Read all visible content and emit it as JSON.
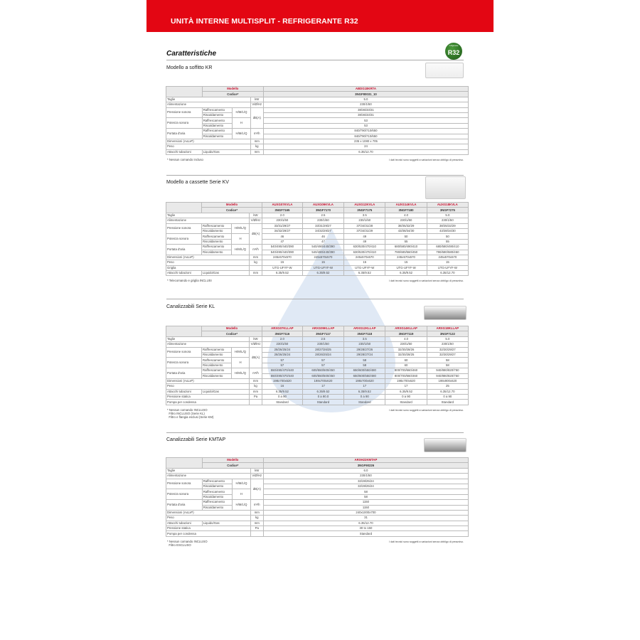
{
  "header": {
    "title": "UNITÀ INTERNE MULTISPLIT - REFRIGERANTE R32"
  },
  "section_heading": "Caratteristiche",
  "badge": {
    "text": "R32",
    "small": "refrigerante",
    "color": "#2e7d32"
  },
  "accent": "#e30613",
  "labels": {
    "modello": "Modello",
    "codice": "Codice*"
  },
  "disclaimer": "I dati tecnici sono soggetti a variazioni senza obbligo di preavviso.",
  "tables": [
    {
      "title": "Modello a soffitto KR",
      "models": [
        "ABDG18KRTA"
      ],
      "codes": [
        "3NGF80031_10"
      ],
      "rows": [
        {
          "label": "Taglie",
          "unit": "kW",
          "values": [
            "5.0"
          ]
        },
        {
          "label": "Alimentazione",
          "unit": "V/Ø/Hz",
          "values": [
            "230/1/50"
          ]
        },
        {
          "label": "Pressione sonora",
          "mode": "H/M/L/Q",
          "unit": "dB(A)",
          "span4": true,
          "sub": [
            "Raffrescamento",
            "Riscaldamento"
          ],
          "values": [
            [
              "38/36/33/31"
            ],
            [
              "38/36/33/31"
            ]
          ]
        },
        {
          "label": "Potenza sonora",
          "mode": "H",
          "sub": [
            "Raffrescamento",
            "Riscaldamento"
          ],
          "values": [
            [
              "53"
            ],
            [
              "53"
            ]
          ]
        },
        {
          "label": "Portata d'aria",
          "mode": "H/M/L/Q",
          "unit": "m³/h",
          "sub": [
            "Raffrescamento",
            "Riscaldamento"
          ],
          "values": [
            [
              "840/790/710/650"
            ],
            [
              "840/790/710/650"
            ]
          ]
        },
        {
          "label": "Dimensioni (AxLxP)",
          "unit": "mm",
          "values": [
            "235 x 1080 x 705"
          ]
        },
        {
          "label": "Peso",
          "unit": "kg",
          "values": [
            "24"
          ]
        },
        {
          "label": "Attacchi tubazioni",
          "sublabel": "Liquido/Gas",
          "unit": "mm",
          "values": [
            "6.35/12.70"
          ]
        }
      ],
      "note": "* Nessun comando incluso"
    },
    {
      "title": "Modello a cassette Serie KV",
      "models": [
        "AUXG07KVLA",
        "AUXG09KVLA",
        "AUXG12KVLA",
        "AUXG14KVLA",
        "AUXG18KVLA"
      ],
      "codes": [
        "3NGF7165",
        "3NGF7170",
        "3NGF7175",
        "3NGF7180",
        "3NGF7275"
      ],
      "rows": [
        {
          "label": "Taglie",
          "unit": "kW",
          "values": [
            "2.0",
            "2.5",
            "3.5",
            "4.0",
            "5.0"
          ]
        },
        {
          "label": "Alimentazione",
          "unit": "V/Ø/Hz",
          "values": [
            "230/1/50",
            "230/1/50",
            "230/1/50",
            "230/1/50",
            "230/1/50"
          ]
        },
        {
          "label": "Pressione sonora",
          "mode": "H/M/L/Q",
          "unit": "dB(A)",
          "span4": true,
          "sub": [
            "Raffrescamento",
            "Riscaldamento"
          ],
          "values": [
            [
              "33/31/29/27",
              "33/31/29/27",
              "37/34/31/28",
              "38/35/32/29",
              "38/35/32/29"
            ],
            [
              "34/32/29/27",
              "34/32/29/27",
              "37/34/31/29",
              "43/38/34/30",
              "43/38/34/30"
            ]
          ]
        },
        {
          "label": "Potenza sonora",
          "mode": "H",
          "sub": [
            "Raffrescamento",
            "Riscaldamento"
          ],
          "values": [
            [
              "46",
              "46",
              "49",
              "50",
              "50"
            ],
            [
              "47",
              "47",
              "49",
              "55",
              "55"
            ]
          ]
        },
        {
          "label": "Portata d'aria",
          "mode": "H/M/L/Q",
          "unit": "m³/h",
          "sub": [
            "Raffrescamento",
            "Riscaldamento"
          ],
          "values": [
            [
              "540/490/440/390",
              "540/490/440/390",
              "630/530/470/410",
              "680/580/490/410",
              "680/580/490/410"
            ],
            [
              "540/490/440/390",
              "540/490/440/390",
              "630/530/470/410",
              "790/680/560/450",
              "790/680/580/450"
            ]
          ]
        },
        {
          "label": "Dimensioni (AxLxP)",
          "unit": "mm",
          "values": [
            "245x570x570",
            "245x570x570",
            "245x570x570",
            "245x570x570",
            "245x570x570"
          ]
        },
        {
          "label": "Peso",
          "unit": "kg",
          "values": [
            "15",
            "15",
            "15",
            "15",
            "15"
          ]
        },
        {
          "label": "Griglia",
          "unit": "",
          "values": [
            "UTG-UFYF-W",
            "UTG-UFYF-W",
            "UTG-UFYF-W",
            "UTG-UFYF-W",
            "UTG-UFYF-W"
          ]
        },
        {
          "label": "Attacchi tubazioni",
          "sublabel": "Liquido/Gas",
          "unit": "mm",
          "values": [
            "6.35/9.52",
            "6.35/9.52",
            "6.35/9.52",
            "6.35/9.52",
            "6.35/12.70"
          ]
        }
      ],
      "note": "* Telecomando e griglia INCLUSI"
    },
    {
      "title": "Canalizzabili Serie KL",
      "models": [
        "ARXG07KLLAP",
        "ARXG09KLLAP",
        "ARXG12KLLAP",
        "ARXG14KLLAP",
        "ARXG18KLLAP"
      ],
      "codes": [
        "3NGF7116",
        "3NGF7117",
        "3NGF7118",
        "3NGF7119",
        "3NGF7122"
      ],
      "rows": [
        {
          "label": "Taglie",
          "unit": "kW",
          "values": [
            "2.0",
            "2.5",
            "3.5",
            "4.0",
            "5.0"
          ]
        },
        {
          "label": "Alimentazione",
          "unit": "V/Ø/Hz",
          "values": [
            "230/1/50",
            "230/1/50",
            "230/1/50",
            "230/1/50",
            "230/1/50"
          ]
        },
        {
          "label": "Pressione sonora",
          "mode": "H/M/L/Q",
          "unit": "dB(A)",
          "span4": true,
          "sub": [
            "Raffrescamento",
            "Riscaldamento"
          ],
          "values": [
            [
              "28/26/25/24",
              "28/27/26/25",
              "29/28/27/26",
              "32/30/28/26",
              "32/30/29/27"
            ],
            [
              "28/26/25/24",
              "28/26/25/24",
              "29/28/27/24",
              "32/30/28/25",
              "32/30/29/27"
            ]
          ]
        },
        {
          "label": "Potenza sonora",
          "mode": "H",
          "sub": [
            "Raffrescamento",
            "Riscaldamento"
          ],
          "values": [
            [
              "57",
              "57",
              "58",
              "60",
              "58"
            ],
            [
              "57",
              "57",
              "58",
              "60",
              "58"
            ]
          ]
        },
        {
          "label": "Portata d'aria",
          "mode": "H/M/L/Q",
          "unit": "m³/h",
          "sub": [
            "Raffrescamento",
            "Riscaldamento"
          ],
          "values": [
            [
              "550/490/470/440",
              "600/550/500/450",
              "650/600/550/480",
              "800/700/660/460",
              "940/880/820/750"
            ],
            [
              "550/490/470/440",
              "600/550/500/450",
              "650/600/550/480",
              "800/700/660/460",
              "940/880/820/750"
            ]
          ]
        },
        {
          "label": "Dimensioni (AxLxP)",
          "unit": "mm",
          "values": [
            "198x700x620",
            "198x700x620",
            "198x700x620",
            "198x700x620",
            "198x900x620"
          ]
        },
        {
          "label": "Peso",
          "unit": "kg",
          "values": [
            "16",
            "17",
            "17",
            "17",
            "25"
          ]
        },
        {
          "label": "Attacchi tubazioni",
          "sublabel": "Liquido/Gas",
          "unit": "mm",
          "values": [
            "6.35/9.52",
            "6.35/9.52",
            "6.35/9.52",
            "6.35/9.52",
            "6.35/12.70"
          ]
        },
        {
          "label": "Pressione statica",
          "unit": "Pa",
          "values": [
            "0 a 90",
            "0 a 90.0",
            "0 a 90",
            "0 a 90",
            "0 a 90"
          ]
        },
        {
          "label": "Pompa per condensa",
          "unit": "",
          "values": [
            "Standard",
            "Standard",
            "Standard",
            "Standard",
            "Standard"
          ]
        }
      ],
      "note": "* Nessun comando INCLUSO\n  Filtro INCLUSO (Serie KL)\n  Filtro e flangia esclusi (Serie KM)"
    },
    {
      "title": "Canalizzabili Serie KMTAP",
      "models": [
        "ARXH22KMTAP"
      ],
      "codes": [
        "3NGF90226"
      ],
      "rows": [
        {
          "label": "Taglie",
          "unit": "kW",
          "values": [
            "6.0"
          ]
        },
        {
          "label": "Alimentazione",
          "unit": "V/Ø/Hz",
          "values": [
            "230/1/50"
          ]
        },
        {
          "label": "Pressione sonora",
          "mode": "H/M/L/Q",
          "unit": "dB(A)",
          "span4": true,
          "sub": [
            "Raffrescamento",
            "Riscaldamento"
          ],
          "values": [
            [
              "32/28/25/24"
            ],
            [
              "32/28/25/24"
            ]
          ]
        },
        {
          "label": "Potenza sonora",
          "mode": "H",
          "sub": [
            "Raffrescamento",
            "Riscaldamento"
          ],
          "values": [
            [
              "58"
            ],
            [
              "58"
            ]
          ]
        },
        {
          "label": "Portata d'aria",
          "mode": "H/M/L/Q",
          "unit": "m³/h",
          "sub": [
            "Raffrescamento",
            "Riscaldamento"
          ],
          "values": [
            [
              "1150"
            ],
            [
              "1150"
            ]
          ]
        },
        {
          "label": "Dimensioni (AxLxP)",
          "unit": "mm",
          "values": [
            "240x1000x700"
          ]
        },
        {
          "label": "Peso",
          "unit": "kg",
          "values": [
            "31"
          ]
        },
        {
          "label": "Attacchi tubazioni",
          "sublabel": "Liquido/Gas",
          "unit": "mm",
          "values": [
            "6.35/12.70"
          ]
        },
        {
          "label": "Pressione statica",
          "unit": "Pa",
          "values": [
            "30 to 150"
          ]
        },
        {
          "label": "Pompa per condensa",
          "unit": "",
          "values": [
            "Standard"
          ]
        }
      ],
      "note": "* Nessun comando INCLUSO\n  Filtro ESCLUSO"
    }
  ]
}
